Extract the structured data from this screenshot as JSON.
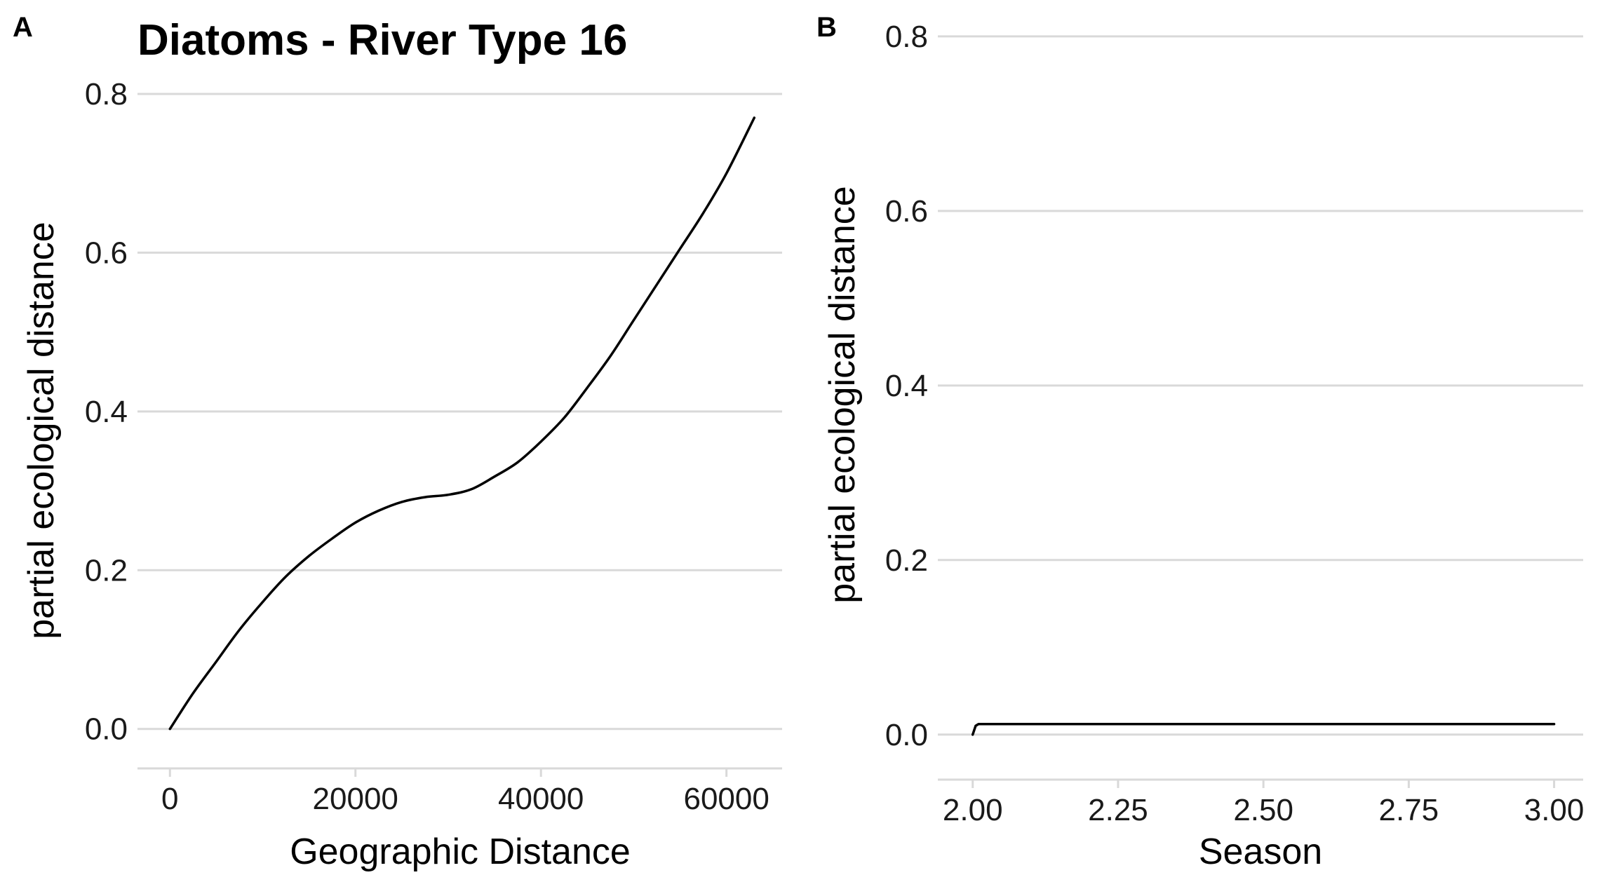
{
  "chart_data": [
    {
      "type": "line",
      "panel_label": "A",
      "title": "Diatoms - River Type 16",
      "xlabel": "Geographic Distance",
      "ylabel": "partial ecological distance",
      "xlim": [
        -3500,
        66000
      ],
      "ylim": [
        -0.04,
        0.8
      ],
      "xticks": [
        0,
        20000,
        40000,
        60000
      ],
      "xtick_labels": [
        "0",
        "20000",
        "40000",
        "60000"
      ],
      "yticks": [
        0.0,
        0.2,
        0.4,
        0.6,
        0.8
      ],
      "ytick_labels": [
        "0.0",
        "0.2",
        "0.4",
        "0.6",
        "0.8"
      ],
      "grid": "horizontal",
      "series": [
        {
          "x": [
            0,
            2500,
            5000,
            7500,
            10000,
            12500,
            15000,
            17500,
            20000,
            22500,
            25000,
            27500,
            30000,
            32500,
            35000,
            37500,
            40000,
            42500,
            45000,
            47500,
            50000,
            52500,
            55000,
            57500,
            60000,
            63000
          ],
          "y": [
            0.0,
            0.045,
            0.085,
            0.125,
            0.16,
            0.192,
            0.218,
            0.24,
            0.26,
            0.275,
            0.286,
            0.292,
            0.295,
            0.302,
            0.318,
            0.336,
            0.362,
            0.392,
            0.43,
            0.47,
            0.515,
            0.56,
            0.605,
            0.65,
            0.7,
            0.77
          ]
        }
      ]
    },
    {
      "type": "line",
      "panel_label": "B",
      "xlabel": "Season",
      "ylabel": "partial ecological distance",
      "xlim": [
        1.94,
        3.05
      ],
      "ylim": [
        -0.05,
        0.82
      ],
      "xticks": [
        2.0,
        2.25,
        2.5,
        2.75,
        3.0
      ],
      "xtick_labels": [
        "2.00",
        "2.25",
        "2.50",
        "2.75",
        "3.00"
      ],
      "yticks": [
        0.0,
        0.2,
        0.4,
        0.6,
        0.8
      ],
      "ytick_labels": [
        "0.0",
        "0.2",
        "0.4",
        "0.6",
        "0.8"
      ],
      "grid": "horizontal",
      "series": [
        {
          "x": [
            2.0,
            2.005,
            2.01,
            2.5,
            3.0
          ],
          "y": [
            0.0,
            0.01,
            0.012,
            0.012,
            0.012
          ]
        }
      ]
    }
  ]
}
